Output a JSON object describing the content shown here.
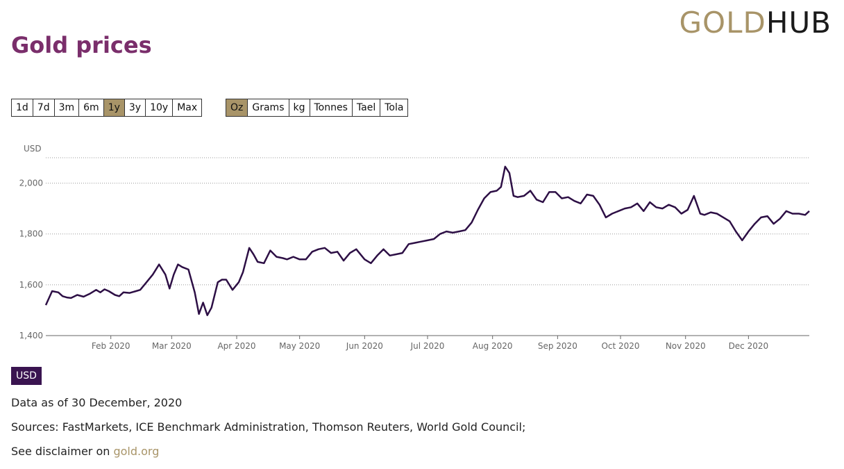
{
  "header": {
    "title": "Gold prices",
    "logo_part1": "GOLD",
    "logo_part2": "HUB"
  },
  "range_buttons": [
    {
      "label": "1d",
      "active": false
    },
    {
      "label": "7d",
      "active": false
    },
    {
      "label": "3m",
      "active": false
    },
    {
      "label": "6m",
      "active": false
    },
    {
      "label": "1y",
      "active": true
    },
    {
      "label": "3y",
      "active": false
    },
    {
      "label": "10y",
      "active": false
    },
    {
      "label": "Max",
      "active": false
    }
  ],
  "unit_buttons": [
    {
      "label": "Oz",
      "active": true
    },
    {
      "label": "Grams",
      "active": false
    },
    {
      "label": "kg",
      "active": false
    },
    {
      "label": "Tonnes",
      "active": false
    },
    {
      "label": "Tael",
      "active": false
    },
    {
      "label": "Tola",
      "active": false
    }
  ],
  "currency_button": "USD",
  "footer": {
    "data_as_of": "Data as of 30 December, 2020",
    "sources": "Sources: FastMarkets, ICE Benchmark Administration, Thomson Reuters, World Gold Council;",
    "disclaimer_prefix": "See disclaimer on ",
    "disclaimer_link": "gold.org"
  },
  "colors": {
    "title": "#7a2e6b",
    "accent_gold": "#a89468",
    "line": "#2d0f45",
    "currency_bg": "#3a1450"
  },
  "chart_data": {
    "type": "line",
    "ylabel": "USD",
    "ylim": [
      1400,
      2100
    ],
    "yticks": [
      1400,
      1600,
      1800,
      2000
    ],
    "ytick_labels": [
      "1,400",
      "1,600",
      "1,800",
      "2,000"
    ],
    "xlim": [
      "2020-01-01",
      "2020-12-30"
    ],
    "xticks": [
      "2020-02-01",
      "2020-03-01",
      "2020-04-01",
      "2020-05-01",
      "2020-06-01",
      "2020-07-01",
      "2020-08-01",
      "2020-09-01",
      "2020-10-01",
      "2020-11-01",
      "2020-12-01"
    ],
    "xtick_labels": [
      "Feb 2020",
      "Mar 2020",
      "Apr 2020",
      "May 2020",
      "Jun 2020",
      "Jul 2020",
      "Aug 2020",
      "Sep 2020",
      "Oct 2020",
      "Nov 2020",
      "Dec 2020"
    ],
    "grid": true,
    "series": [
      {
        "x": [
          "2020-01-01",
          "2020-01-04",
          "2020-01-07",
          "2020-01-09",
          "2020-01-11",
          "2020-01-13",
          "2020-01-16",
          "2020-01-19",
          "2020-01-22",
          "2020-01-25",
          "2020-01-27",
          "2020-01-29",
          "2020-01-31",
          "2020-02-03",
          "2020-02-05",
          "2020-02-07",
          "2020-02-10",
          "2020-02-13",
          "2020-02-15",
          "2020-02-18",
          "2020-02-21",
          "2020-02-24",
          "2020-02-27",
          "2020-02-29",
          "2020-03-02",
          "2020-03-04",
          "2020-03-06",
          "2020-03-09",
          "2020-03-12",
          "2020-03-14",
          "2020-03-16",
          "2020-03-18",
          "2020-03-20",
          "2020-03-23",
          "2020-03-25",
          "2020-03-27",
          "2020-03-30",
          "2020-04-02",
          "2020-04-04",
          "2020-04-07",
          "2020-04-09",
          "2020-04-11",
          "2020-04-14",
          "2020-04-17",
          "2020-04-20",
          "2020-04-23",
          "2020-04-25",
          "2020-04-28",
          "2020-05-01",
          "2020-05-04",
          "2020-05-07",
          "2020-05-10",
          "2020-05-13",
          "2020-05-16",
          "2020-05-19",
          "2020-05-22",
          "2020-05-25",
          "2020-05-28",
          "2020-06-01",
          "2020-06-04",
          "2020-06-07",
          "2020-06-10",
          "2020-06-13",
          "2020-06-16",
          "2020-06-19",
          "2020-06-22",
          "2020-06-25",
          "2020-06-28",
          "2020-07-01",
          "2020-07-04",
          "2020-07-07",
          "2020-07-10",
          "2020-07-13",
          "2020-07-16",
          "2020-07-19",
          "2020-07-22",
          "2020-07-25",
          "2020-07-28",
          "2020-07-31",
          "2020-08-03",
          "2020-08-05",
          "2020-08-07",
          "2020-08-09",
          "2020-08-11",
          "2020-08-13",
          "2020-08-16",
          "2020-08-19",
          "2020-08-22",
          "2020-08-25",
          "2020-08-28",
          "2020-08-31",
          "2020-09-03",
          "2020-09-06",
          "2020-09-09",
          "2020-09-12",
          "2020-09-15",
          "2020-09-18",
          "2020-09-21",
          "2020-09-24",
          "2020-09-27",
          "2020-09-30",
          "2020-10-03",
          "2020-10-06",
          "2020-10-09",
          "2020-10-12",
          "2020-10-15",
          "2020-10-18",
          "2020-10-21",
          "2020-10-24",
          "2020-10-27",
          "2020-10-30",
          "2020-11-02",
          "2020-11-05",
          "2020-11-08",
          "2020-11-10",
          "2020-11-13",
          "2020-11-16",
          "2020-11-19",
          "2020-11-22",
          "2020-11-25",
          "2020-11-28",
          "2020-12-01",
          "2020-12-04",
          "2020-12-07",
          "2020-12-10",
          "2020-12-13",
          "2020-12-16",
          "2020-12-19",
          "2020-12-22",
          "2020-12-25",
          "2020-12-28",
          "2020-12-30"
        ],
        "y": [
          1520,
          1575,
          1570,
          1555,
          1550,
          1548,
          1560,
          1553,
          1565,
          1580,
          1570,
          1582,
          1575,
          1560,
          1555,
          1570,
          1568,
          1575,
          1580,
          1610,
          1640,
          1680,
          1640,
          1585,
          1640,
          1680,
          1670,
          1660,
          1570,
          1485,
          1530,
          1480,
          1510,
          1610,
          1620,
          1620,
          1580,
          1610,
          1650,
          1745,
          1720,
          1690,
          1685,
          1735,
          1710,
          1705,
          1700,
          1710,
          1700,
          1700,
          1730,
          1740,
          1745,
          1725,
          1730,
          1695,
          1725,
          1740,
          1700,
          1685,
          1715,
          1740,
          1715,
          1720,
          1725,
          1760,
          1765,
          1770,
          1775,
          1780,
          1800,
          1810,
          1805,
          1810,
          1815,
          1845,
          1895,
          1940,
          1965,
          1970,
          1985,
          2065,
          2040,
          1950,
          1945,
          1950,
          1970,
          1935,
          1925,
          1965,
          1965,
          1940,
          1945,
          1930,
          1920,
          1955,
          1950,
          1915,
          1865,
          1880,
          1890,
          1900,
          1905,
          1920,
          1890,
          1925,
          1905,
          1900,
          1915,
          1905,
          1880,
          1895,
          1950,
          1880,
          1875,
          1885,
          1880,
          1865,
          1850,
          1810,
          1775,
          1810,
          1840,
          1865,
          1870,
          1840,
          1860,
          1890,
          1880,
          1880,
          1875,
          1890
        ]
      }
    ]
  }
}
